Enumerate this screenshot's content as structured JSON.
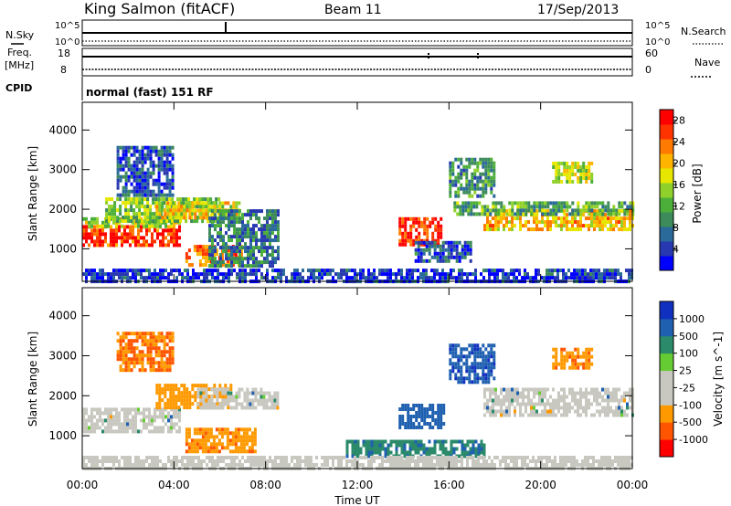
{
  "header": {
    "station": "King Salmon (fitACF)",
    "beam": "Beam 11",
    "date": "17/Sep/2013"
  },
  "aux_panels": {
    "nsky_label": "N.Sky",
    "nsearch_label": "N.Search",
    "noise_ticks": [
      "10^5",
      "10^0"
    ],
    "freq_label_line1": "Freq.",
    "freq_label_line2": "[MHz]",
    "freq_ticks": [
      "18",
      "8"
    ],
    "nave_label": "Nave",
    "nave_ticks": [
      "60",
      "0"
    ],
    "cpid_label": "CPID",
    "cpid_text": "normal (fast) 151 RF"
  },
  "colors": {
    "power_scale": [
      "#0000ff",
      "#2838b0",
      "#2a6a9a",
      "#3d8a5a",
      "#4caf3a",
      "#8fd12a",
      "#e6e600",
      "#ffb400",
      "#ff7a00",
      "#ff3300",
      "#ff0000"
    ],
    "velocity_scale": [
      "#1030c0",
      "#1f60b0",
      "#2a8a6a",
      "#3aa04a",
      "#66cc33",
      "#c8c8c0",
      "#c8c8c0",
      "#ffaa00",
      "#ff7a00",
      "#ff3a00",
      "#ff0000"
    ],
    "ground_scatter": "#c8c8c0"
  },
  "chart_data": [
    {
      "type": "heatmap",
      "panel": "power",
      "title": "",
      "xlabel": "Time UT",
      "ylabel": "Slant Range [km]",
      "x_ticks": [
        "00:00",
        "04:00",
        "08:00",
        "12:00",
        "16:00",
        "20:00",
        "00:00"
      ],
      "xlim_hours": [
        0,
        24
      ],
      "y_ticks": [
        1000,
        2000,
        3000,
        4000
      ],
      "ylim_km": [
        180,
        4700
      ],
      "colorbar_label": "Power [dB]",
      "colorbar_ticks": [
        4,
        8,
        12,
        16,
        20,
        24,
        28
      ],
      "colorbar_range": [
        0,
        30
      ],
      "echo_regions": [
        {
          "t0": 0.0,
          "t1": 4.2,
          "r0": 1100,
          "r1": 1600,
          "value": 26
        },
        {
          "t0": 0.0,
          "t1": 4.2,
          "r0": 1550,
          "r1": 1800,
          "value": 16
        },
        {
          "t0": 1.0,
          "t1": 6.0,
          "r0": 1700,
          "r1": 2300,
          "value": 14
        },
        {
          "t0": 3.2,
          "t1": 6.8,
          "r0": 1800,
          "r1": 2200,
          "value": 18
        },
        {
          "t0": 4.5,
          "t1": 7.0,
          "r0": 600,
          "r1": 1100,
          "value": 24
        },
        {
          "t0": 5.5,
          "t1": 8.5,
          "r0": 600,
          "r1": 2000,
          "value": 8
        },
        {
          "t0": 1.5,
          "t1": 4.0,
          "r0": 2400,
          "r1": 3600,
          "value": 5
        },
        {
          "t0": 13.8,
          "t1": 15.6,
          "r0": 1100,
          "r1": 1800,
          "value": 27
        },
        {
          "t0": 14.5,
          "t1": 17.0,
          "r0": 700,
          "r1": 1200,
          "value": 6
        },
        {
          "t0": 17.5,
          "t1": 24.0,
          "r0": 1500,
          "r1": 2000,
          "value": 20
        },
        {
          "t0": 16.2,
          "t1": 24.0,
          "r0": 1850,
          "r1": 2200,
          "value": 12
        },
        {
          "t0": 20.5,
          "t1": 22.2,
          "r0": 2700,
          "r1": 3200,
          "value": 16
        },
        {
          "t0": 16.0,
          "t1": 18.0,
          "r0": 2300,
          "r1": 3300,
          "value": 10
        },
        {
          "t0": 0.0,
          "t1": 24.0,
          "r0": 180,
          "r1": 500,
          "value": 4
        }
      ]
    },
    {
      "type": "heatmap",
      "panel": "velocity",
      "title": "",
      "xlabel": "Time UT",
      "ylabel": "Slant Range [km]",
      "x_ticks": [
        "00:00",
        "04:00",
        "08:00",
        "12:00",
        "16:00",
        "20:00",
        "00:00"
      ],
      "xlim_hours": [
        0,
        24
      ],
      "y_ticks": [
        1000,
        2000,
        3000,
        4000
      ],
      "ylim_km": [
        180,
        4700
      ],
      "colorbar_label": "Velocity [m s^-1]",
      "colorbar_ticks": [
        1000,
        500,
        100,
        25,
        -25,
        -100,
        -500,
        -1000
      ],
      "echo_regions": [
        {
          "t0": 0.0,
          "t1": 4.2,
          "r0": 1100,
          "r1": 1700,
          "value": "gs"
        },
        {
          "t0": 3.2,
          "t1": 6.5,
          "r0": 1700,
          "r1": 2300,
          "value": -300
        },
        {
          "t0": 4.5,
          "t1": 7.5,
          "r0": 600,
          "r1": 1200,
          "value": -400
        },
        {
          "t0": 5.0,
          "t1": 8.5,
          "r0": 1700,
          "r1": 2200,
          "value": "gs"
        },
        {
          "t0": 1.5,
          "t1": 4.0,
          "r0": 2600,
          "r1": 3600,
          "value": -500
        },
        {
          "t0": 13.8,
          "t1": 15.8,
          "r0": 1200,
          "r1": 1800,
          "value": 300
        },
        {
          "t0": 11.5,
          "t1": 17.5,
          "r0": 500,
          "r1": 900,
          "value": 80
        },
        {
          "t0": 16.0,
          "t1": 18.0,
          "r0": 2300,
          "r1": 3300,
          "value": 400
        },
        {
          "t0": 17.5,
          "t1": 24.0,
          "r0": 1500,
          "r1": 2200,
          "value": "gs"
        },
        {
          "t0": 20.5,
          "t1": 22.2,
          "r0": 2700,
          "r1": 3200,
          "value": -400
        },
        {
          "t0": 0.0,
          "t1": 24.0,
          "r0": 180,
          "r1": 500,
          "value": -50
        }
      ]
    }
  ]
}
